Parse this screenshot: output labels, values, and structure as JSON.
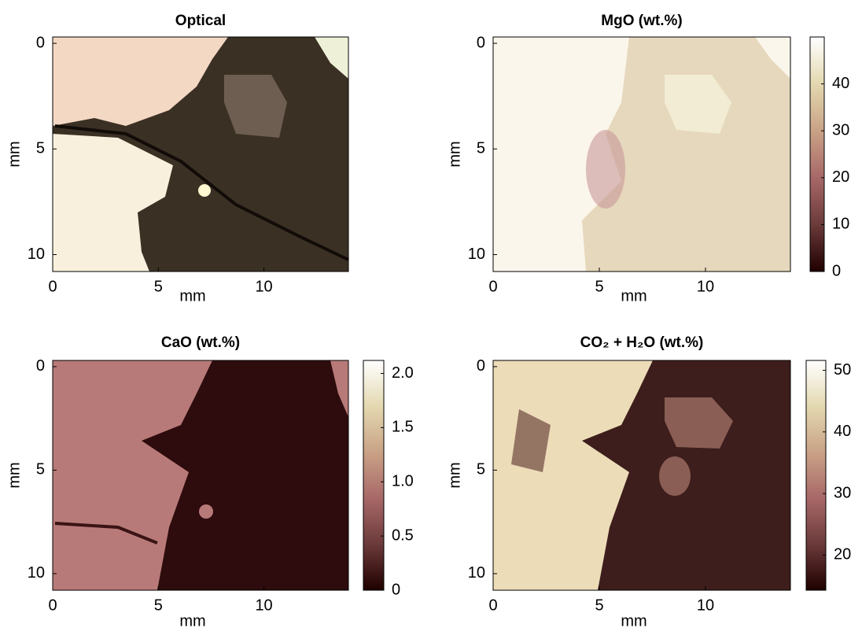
{
  "chart_data": [
    {
      "type": "image",
      "title": "Optical",
      "xlabel": "mm",
      "ylabel": "mm",
      "xlim": [
        0,
        14
      ],
      "ylim": [
        -0.3,
        10.8
      ],
      "xticks": [
        0,
        5,
        10
      ],
      "yticks": [
        0,
        5,
        10
      ]
    },
    {
      "type": "image",
      "title": "MgO (wt.%)",
      "xlabel": "mm",
      "ylabel": "mm",
      "xlim": [
        0,
        14
      ],
      "ylim": [
        -0.3,
        10.8
      ],
      "xticks": [
        0,
        5,
        10
      ],
      "yticks": [
        0,
        5,
        10
      ],
      "colorbar": {
        "clim": [
          0,
          50
        ],
        "ticks": [
          0,
          10,
          20,
          30,
          40
        ]
      },
      "colormap": [
        "#1f0000",
        "#6b3a3a",
        "#a86868",
        "#c9a286",
        "#e3d8b0",
        "#ffffff"
      ]
    },
    {
      "type": "image",
      "title": "CaO (wt.%)",
      "xlabel": "mm",
      "ylabel": "mm",
      "xlim": [
        0,
        14
      ],
      "ylim": [
        -0.3,
        10.8
      ],
      "xticks": [
        0,
        5,
        10
      ],
      "yticks": [
        0,
        5,
        10
      ],
      "colorbar": {
        "clim": [
          0,
          2.12
        ],
        "ticks": [
          0,
          0.5,
          {
            "value": 1,
            "label": "1.0"
          },
          1.5,
          {
            "value": 2,
            "label": "2.0"
          }
        ]
      },
      "colormap": [
        "#1f0000",
        "#6b3a3a",
        "#a86868",
        "#c9a286",
        "#e3d8b0",
        "#ffffff"
      ]
    },
    {
      "type": "image",
      "title": "CO₂ + H₂O (wt.%)",
      "xlabel": "mm",
      "ylabel": "mm",
      "xlim": [
        0,
        14
      ],
      "ylim": [
        -0.3,
        10.8
      ],
      "xticks": [
        0,
        5,
        10
      ],
      "yticks": [
        0,
        5,
        10
      ],
      "colorbar": {
        "clim": [
          14.3,
          51.6
        ],
        "ticks": [
          20,
          30,
          40,
          50
        ]
      },
      "colormap": [
        "#1f0000",
        "#6b3a3a",
        "#a86868",
        "#c9a286",
        "#e3d8b0",
        "#ffffff"
      ]
    }
  ]
}
